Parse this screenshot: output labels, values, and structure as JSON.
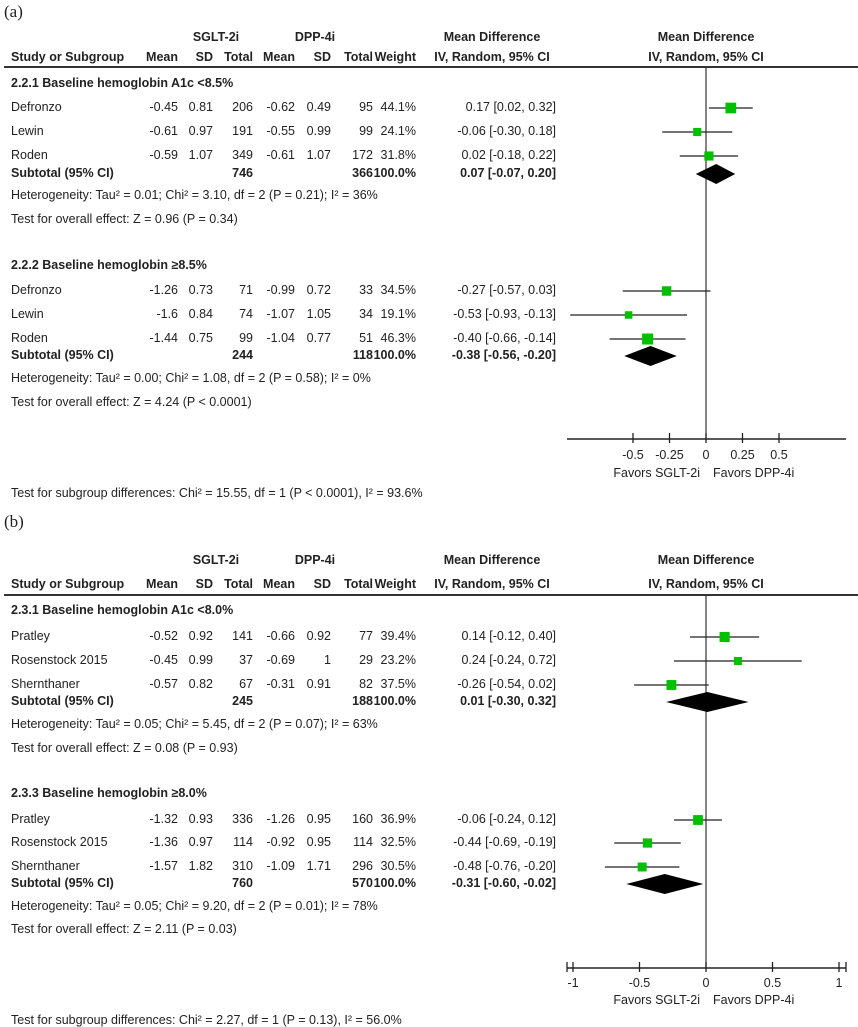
{
  "panels": [
    {
      "label": "(a)",
      "group_headers": {
        "sglt": "SGLT-2i",
        "dpp": "DPP-4i",
        "md_text": "Mean Difference",
        "md_plot": "Mean Difference"
      },
      "columns": [
        "Study or Subgroup",
        "Mean",
        "SD",
        "Total",
        "Mean",
        "SD",
        "Total",
        "Weight",
        "IV, Random, 95% CI",
        "IV, Random, 95% CI"
      ],
      "subgroups": [
        {
          "title": "2.2.1 Baseline hemoglobin A1c <8.5%",
          "studies": [
            {
              "name": "Defronzo",
              "m1": "-0.45",
              "sd1": "0.81",
              "n1": "206",
              "m2": "-0.62",
              "sd2": "0.49",
              "n2": "95",
              "weight": "44.1%",
              "ci_text": "0.17 [0.02, 0.32]",
              "md": 0.17,
              "lo": 0.02,
              "hi": 0.32,
              "w": 44.1
            },
            {
              "name": "Lewin",
              "m1": "-0.61",
              "sd1": "0.97",
              "n1": "191",
              "m2": "-0.55",
              "sd2": "0.99",
              "n2": "99",
              "weight": "24.1%",
              "ci_text": "-0.06 [-0.30, 0.18]",
              "md": -0.06,
              "lo": -0.3,
              "hi": 0.18,
              "w": 24.1
            },
            {
              "name": "Roden",
              "m1": "-0.59",
              "sd1": "1.07",
              "n1": "349",
              "m2": "-0.61",
              "sd2": "1.07",
              "n2": "172",
              "weight": "31.8%",
              "ci_text": "0.02 [-0.18, 0.22]",
              "md": 0.02,
              "lo": -0.18,
              "hi": 0.22,
              "w": 31.8
            }
          ],
          "subtotal": {
            "label": "Subtotal (95% CI)",
            "n1": "746",
            "n2": "366",
            "weight": "100.0%",
            "ci_text": "0.07 [-0.07, 0.20]",
            "md": 0.07,
            "lo": -0.07,
            "hi": 0.2
          },
          "heterogeneity": "Heterogeneity: Tau² = 0.01; Chi² = 3.10, df = 2 (P = 0.21); I² = 36%",
          "overall": "Test for overall effect: Z = 0.96 (P = 0.34)"
        },
        {
          "title": "2.2.2 Baseline hemoglobin ≥8.5%",
          "studies": [
            {
              "name": "Defronzo",
              "m1": "-1.26",
              "sd1": "0.73",
              "n1": "71",
              "m2": "-0.99",
              "sd2": "0.72",
              "n2": "33",
              "weight": "34.5%",
              "ci_text": "-0.27 [-0.57, 0.03]",
              "md": -0.27,
              "lo": -0.57,
              "hi": 0.03,
              "w": 34.5
            },
            {
              "name": "Lewin",
              "m1": "-1.6",
              "sd1": "0.84",
              "n1": "74",
              "m2": "-1.07",
              "sd2": "1.05",
              "n2": "34",
              "weight": "19.1%",
              "ci_text": "-0.53 [-0.93, -0.13]",
              "md": -0.53,
              "lo": -0.93,
              "hi": -0.13,
              "w": 19.1
            },
            {
              "name": "Roden",
              "m1": "-1.44",
              "sd1": "0.75",
              "n1": "99",
              "m2": "-1.04",
              "sd2": "0.77",
              "n2": "51",
              "weight": "46.3%",
              "ci_text": "-0.40 [-0.66, -0.14]",
              "md": -0.4,
              "lo": -0.66,
              "hi": -0.14,
              "w": 46.3
            }
          ],
          "subtotal": {
            "label": "Subtotal (95% CI)",
            "n1": "244",
            "n2": "118",
            "weight": "100.0%",
            "ci_text": "-0.38 [-0.56, -0.20]",
            "md": -0.38,
            "lo": -0.56,
            "hi": -0.2
          },
          "heterogeneity": "Heterogeneity: Tau² = 0.00; Chi² = 1.08, df = 2 (P = 0.58); I² = 0%",
          "overall": "Test for overall effect: Z = 4.24 (P < 0.0001)"
        }
      ],
      "axis": {
        "ticks": [
          -0.5,
          -0.25,
          0,
          0.25,
          0.5
        ],
        "tick_labels": [
          "-0.5",
          "-0.25",
          "0",
          "0.25",
          "0.5"
        ],
        "xlim": [
          -0.95,
          0.96
        ],
        "favors_left": "Favors SGLT-2i",
        "favors_right": "Favors DPP-4i"
      },
      "subgroup_diff": "Test for subgroup differences: Chi² = 15.55, df = 1 (P < 0.0001), I² = 93.6%"
    },
    {
      "label": "(b)",
      "group_headers": {
        "sglt": "SGLT-2i",
        "dpp": "DPP-4i",
        "md_text": "Mean Difference",
        "md_plot": "Mean Difference"
      },
      "columns": [
        "Study or Subgroup",
        "Mean",
        "SD",
        "Total",
        "Mean",
        "SD",
        "Total",
        "Weight",
        "IV, Random, 95% CI",
        "IV, Random, 95% CI"
      ],
      "subgroups": [
        {
          "title": "2.3.1 Baseline hemoglobin A1c <8.0%",
          "studies": [
            {
              "name": "Pratley",
              "m1": "-0.52",
              "sd1": "0.92",
              "n1": "141",
              "m2": "-0.66",
              "sd2": "0.92",
              "n2": "77",
              "weight": "39.4%",
              "ci_text": "0.14 [-0.12, 0.40]",
              "md": 0.14,
              "lo": -0.12,
              "hi": 0.4,
              "w": 39.4
            },
            {
              "name": "Rosenstock 2015",
              "m1": "-0.45",
              "sd1": "0.99",
              "n1": "37",
              "m2": "-0.69",
              "sd2": "1",
              "n2": "29",
              "weight": "23.2%",
              "ci_text": "0.24 [-0.24, 0.72]",
              "md": 0.24,
              "lo": -0.24,
              "hi": 0.72,
              "w": 23.2
            },
            {
              "name": "Shernthaner",
              "m1": "-0.57",
              "sd1": "0.82",
              "n1": "67",
              "m2": "-0.31",
              "sd2": "0.91",
              "n2": "82",
              "weight": "37.5%",
              "ci_text": "-0.26 [-0.54, 0.02]",
              "md": -0.26,
              "lo": -0.54,
              "hi": 0.02,
              "w": 37.5
            }
          ],
          "subtotal": {
            "label": "Subtotal (95% CI)",
            "n1": "245",
            "n2": "188",
            "weight": "100.0%",
            "ci_text": "0.01 [-0.30, 0.32]",
            "md": 0.01,
            "lo": -0.3,
            "hi": 0.32
          },
          "heterogeneity": "Heterogeneity: Tau² = 0.05; Chi² = 5.45, df = 2 (P = 0.07); I² = 63%",
          "overall": "Test for overall effect: Z = 0.08 (P = 0.93)"
        },
        {
          "title": "2.3.3 Baseline hemoglobin ≥8.0%",
          "studies": [
            {
              "name": "Pratley",
              "m1": "-1.32",
              "sd1": "0.93",
              "n1": "336",
              "m2": "-1.26",
              "sd2": "0.95",
              "n2": "160",
              "weight": "36.9%",
              "ci_text": "-0.06 [-0.24, 0.12]",
              "md": -0.06,
              "lo": -0.24,
              "hi": 0.12,
              "w": 36.9
            },
            {
              "name": "Rosenstock 2015",
              "m1": "-1.36",
              "sd1": "0.97",
              "n1": "114",
              "m2": "-0.92",
              "sd2": "0.95",
              "n2": "114",
              "weight": "32.5%",
              "ci_text": "-0.44 [-0.69, -0.19]",
              "md": -0.44,
              "lo": -0.69,
              "hi": -0.19,
              "w": 32.5
            },
            {
              "name": "Shernthaner",
              "m1": "-1.57",
              "sd1": "1.82",
              "n1": "310",
              "m2": "-1.09",
              "sd2": "1.71",
              "n2": "296",
              "weight": "30.5%",
              "ci_text": "-0.48 [-0.76, -0.20]",
              "md": -0.48,
              "lo": -0.76,
              "hi": -0.2,
              "w": 30.5
            }
          ],
          "subtotal": {
            "label": "Subtotal (95% CI)",
            "n1": "760",
            "n2": "570",
            "weight": "100.0%",
            "ci_text": "-0.31 [-0.60, -0.02]",
            "md": -0.31,
            "lo": -0.6,
            "hi": -0.02
          },
          "heterogeneity": "Heterogeneity: Tau² = 0.05; Chi² = 9.20, df = 2 (P = 0.01); I² = 78%",
          "overall": "Test for overall effect: Z = 2.11 (P = 0.03)"
        }
      ],
      "axis": {
        "ticks": [
          -1,
          -0.5,
          0,
          0.5,
          1
        ],
        "tick_labels": [
          "-1",
          "-0.5",
          "0",
          "0.5",
          "1"
        ],
        "xlim": [
          -1.05,
          1.05
        ],
        "favors_left": "Favors SGLT-2i",
        "favors_right": "Favors DPP-4i"
      },
      "subgroup_diff": "Test for subgroup differences: Chi² = 2.27, df = 1 (P = 0.13), I² = 56.0%"
    }
  ],
  "colors": {
    "study_marker": "#00c000",
    "diamond": "#000000",
    "line": "#222222"
  },
  "chart_data": [
    {
      "type": "forest",
      "title": "(a)",
      "xlabel": "Mean Difference IV, Random, 95% CI",
      "categories": [
        "Defronzo",
        "Lewin",
        "Roden",
        "Subtotal",
        "Defronzo",
        "Lewin",
        "Roden",
        "Subtotal"
      ],
      "series": [
        {
          "name": "2.2.1 Baseline hemoglobin A1c <8.5%",
          "md": [
            0.17,
            -0.06,
            0.02,
            0.07
          ],
          "lo": [
            0.02,
            -0.3,
            -0.18,
            -0.07
          ],
          "hi": [
            0.32,
            0.18,
            0.22,
            0.2
          ]
        },
        {
          "name": "2.2.2 Baseline hemoglobin ≥8.5%",
          "md": [
            -0.27,
            -0.53,
            -0.4,
            -0.38
          ],
          "lo": [
            -0.57,
            -0.93,
            -0.66,
            -0.56
          ],
          "hi": [
            0.03,
            -0.13,
            -0.14,
            -0.2
          ]
        }
      ],
      "xticks": [
        -0.5,
        -0.25,
        0,
        0.25,
        0.5
      ]
    },
    {
      "type": "forest",
      "title": "(b)",
      "xlabel": "Mean Difference IV, Random, 95% CI",
      "categories": [
        "Pratley",
        "Rosenstock 2015",
        "Shernthaner",
        "Subtotal",
        "Pratley",
        "Rosenstock 2015",
        "Shernthaner",
        "Subtotal"
      ],
      "series": [
        {
          "name": "2.3.1 Baseline hemoglobin A1c <8.0%",
          "md": [
            0.14,
            0.24,
            -0.26,
            0.01
          ],
          "lo": [
            -0.12,
            -0.24,
            -0.54,
            -0.3
          ],
          "hi": [
            0.4,
            0.72,
            0.02,
            0.32
          ]
        },
        {
          "name": "2.3.3 Baseline hemoglobin ≥8.0%",
          "md": [
            -0.06,
            -0.44,
            -0.48,
            -0.31
          ],
          "lo": [
            -0.24,
            -0.69,
            -0.76,
            -0.6
          ],
          "hi": [
            0.12,
            -0.19,
            -0.2,
            -0.02
          ]
        }
      ],
      "xticks": [
        -1,
        -0.5,
        0,
        0.5,
        1
      ]
    }
  ]
}
